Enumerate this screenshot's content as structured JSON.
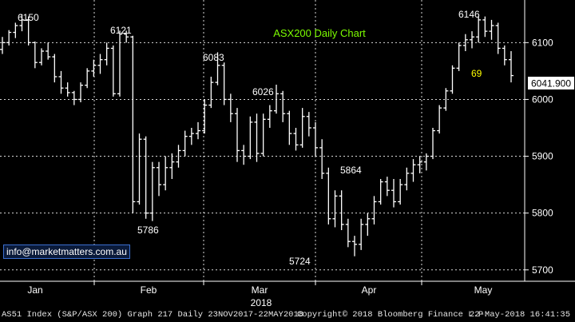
{
  "chart_data": {
    "type": "ohlc",
    "title": "ASX200 Daily Chart",
    "y_ticks": [
      5700,
      5800,
      5900,
      6000,
      6100
    ],
    "ylim": [
      5680,
      6175
    ],
    "x_months": [
      "Jan",
      "Feb",
      "Mar",
      "Apr",
      "May"
    ],
    "x_year": "2018",
    "last_price_label": "6041.900",
    "grid": true,
    "annotations": [
      {
        "text": "6150",
        "value": 6150
      },
      {
        "text": "6121",
        "value": 6121
      },
      {
        "text": "6083",
        "value": 6083
      },
      {
        "text": "6026",
        "value": 6026
      },
      {
        "text": "5786",
        "value": 5786
      },
      {
        "text": "5724",
        "value": 5724
      },
      {
        "text": "5864",
        "value": 5864
      },
      {
        "text": "6146",
        "value": 6146
      },
      {
        "text": "69",
        "value": null
      }
    ],
    "ohlc": [
      [
        6088,
        6110,
        6080,
        6100
      ],
      [
        6100,
        6122,
        6095,
        6118
      ],
      [
        6118,
        6135,
        6108,
        6130
      ],
      [
        6130,
        6150,
        6120,
        6140
      ],
      [
        6140,
        6146,
        6095,
        6100
      ],
      [
        6100,
        6102,
        6055,
        6065
      ],
      [
        6065,
        6090,
        6060,
        6085
      ],
      [
        6085,
        6100,
        6070,
        6075
      ],
      [
        6075,
        6080,
        6030,
        6040
      ],
      [
        6040,
        6050,
        6010,
        6020
      ],
      [
        6020,
        6030,
        6005,
        6012
      ],
      [
        6012,
        6015,
        5990,
        6000
      ],
      [
        6000,
        6030,
        5995,
        6025
      ],
      [
        6025,
        6055,
        6020,
        6050
      ],
      [
        6050,
        6070,
        6040,
        6060
      ],
      [
        6060,
        6080,
        6045,
        6070
      ],
      [
        6070,
        6100,
        6060,
        6090
      ],
      [
        6090,
        6095,
        6005,
        6010
      ],
      [
        6010,
        6121,
        6005,
        6115
      ],
      [
        6115,
        6121,
        6100,
        6110
      ],
      [
        6110,
        6112,
        5800,
        5820
      ],
      [
        5820,
        5940,
        5815,
        5930
      ],
      [
        5930,
        5935,
        5790,
        5800
      ],
      [
        5800,
        5890,
        5786,
        5880
      ],
      [
        5880,
        5890,
        5830,
        5850
      ],
      [
        5850,
        5900,
        5840,
        5880
      ],
      [
        5880,
        5905,
        5860,
        5890
      ],
      [
        5890,
        5920,
        5880,
        5910
      ],
      [
        5910,
        5945,
        5900,
        5935
      ],
      [
        5935,
        5950,
        5920,
        5940
      ],
      [
        5940,
        5960,
        5930,
        5945
      ],
      [
        5945,
        6000,
        5940,
        5990
      ],
      [
        5990,
        6040,
        5985,
        6030
      ],
      [
        6030,
        6083,
        6025,
        6060
      ],
      [
        6060,
        6065,
        5990,
        6000
      ],
      [
        6000,
        6010,
        5960,
        5975
      ],
      [
        5975,
        5985,
        5890,
        5910
      ],
      [
        5910,
        5920,
        5885,
        5900
      ],
      [
        5900,
        5970,
        5895,
        5960
      ],
      [
        5960,
        5975,
        5890,
        5905
      ],
      [
        5905,
        5975,
        5900,
        5965
      ],
      [
        5965,
        5990,
        5950,
        5980
      ],
      [
        5980,
        6026,
        5975,
        6010
      ],
      [
        6010,
        6015,
        5960,
        5975
      ],
      [
        5975,
        5980,
        5920,
        5940
      ],
      [
        5940,
        5950,
        5910,
        5920
      ],
      [
        5920,
        5985,
        5915,
        5970
      ],
      [
        5970,
        5978,
        5935,
        5950
      ],
      [
        5950,
        5960,
        5900,
        5915
      ],
      [
        5915,
        5930,
        5860,
        5870
      ],
      [
        5870,
        5880,
        5780,
        5790
      ],
      [
        5790,
        5840,
        5775,
        5830
      ],
      [
        5830,
        5840,
        5770,
        5780
      ],
      [
        5780,
        5790,
        5740,
        5750
      ],
      [
        5750,
        5760,
        5724,
        5745
      ],
      [
        5745,
        5790,
        5735,
        5780
      ],
      [
        5780,
        5800,
        5760,
        5790
      ],
      [
        5790,
        5830,
        5780,
        5820
      ],
      [
        5820,
        5860,
        5815,
        5855
      ],
      [
        5855,
        5864,
        5830,
        5840
      ],
      [
        5840,
        5860,
        5810,
        5820
      ],
      [
        5820,
        5860,
        5815,
        5850
      ],
      [
        5850,
        5880,
        5840,
        5870
      ],
      [
        5870,
        5895,
        5855,
        5885
      ],
      [
        5885,
        5900,
        5870,
        5890
      ],
      [
        5890,
        5905,
        5875,
        5900
      ],
      [
        5900,
        5950,
        5895,
        5945
      ],
      [
        5945,
        5990,
        5940,
        5985
      ],
      [
        5985,
        6020,
        5980,
        6015
      ],
      [
        6015,
        6060,
        6010,
        6055
      ],
      [
        6055,
        6100,
        6050,
        6095
      ],
      [
        6095,
        6115,
        6085,
        6105
      ],
      [
        6105,
        6120,
        6090,
        6110
      ],
      [
        6110,
        6146,
        6100,
        6140
      ],
      [
        6140,
        6146,
        6110,
        6120
      ],
      [
        6120,
        6140,
        6105,
        6130
      ],
      [
        6130,
        6135,
        6080,
        6090
      ],
      [
        6090,
        6095,
        6060,
        6070
      ],
      [
        6070,
        6085,
        6030,
        6042
      ]
    ]
  },
  "email": "info@marketmatters.com.au",
  "footer": {
    "left": "AS51 Index (S&P/ASX 200) Graph 217  Daily 23NOV2017-22MAY2018",
    "middle": "Copyright© 2018 Bloomberg Finance L.P.",
    "right": "22-May-2018 16:41:35"
  },
  "colors": {
    "background": "#000000",
    "grid": "#ffffff",
    "bars": "#ffffff",
    "title": "#7CFC00",
    "highlight_label": "#ffff00",
    "email_border": "#3a6fd0"
  }
}
